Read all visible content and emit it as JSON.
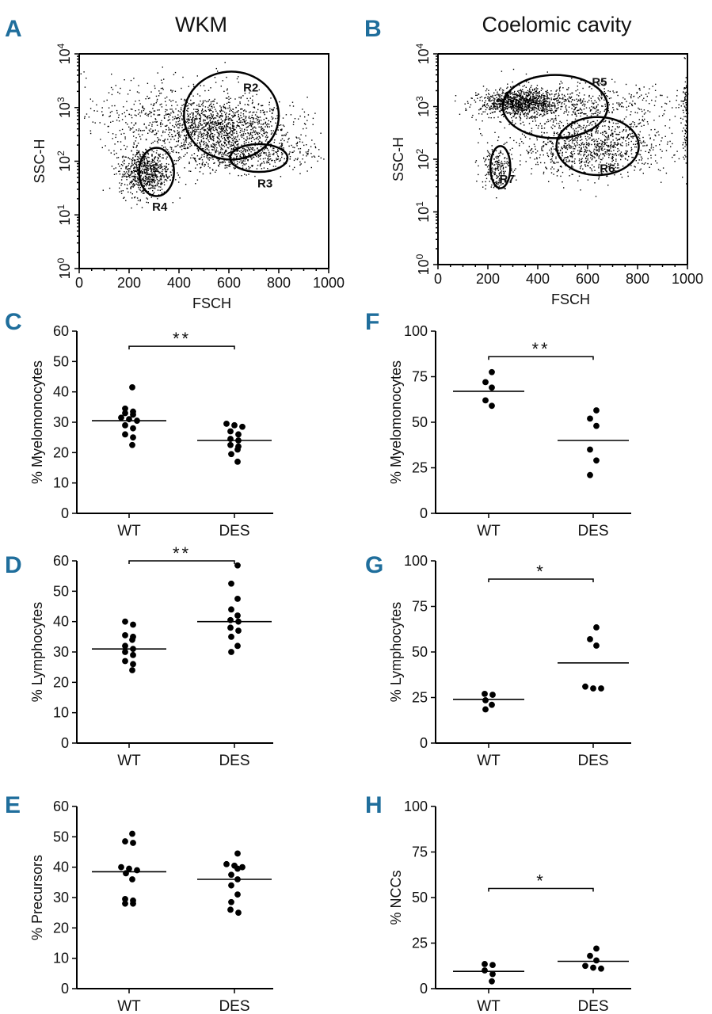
{
  "columns": [
    {
      "title": "WKM"
    },
    {
      "title": "Coelomic cavity"
    }
  ],
  "chart_data": [
    {
      "id": "A",
      "type": "scatter",
      "panel_letter": "A",
      "xlabel": "FSCH",
      "ylabel": "SSC-H",
      "xlim": [
        0,
        1000
      ],
      "ylim_log10": [
        0,
        4
      ],
      "yscale": "log",
      "x_ticks": [
        "0",
        "200",
        "400",
        "600",
        "800",
        "1000"
      ],
      "y_ticks": [
        "10",
        "10",
        "10",
        "10",
        "10"
      ],
      "y_tick_exponents": [
        "0",
        "1",
        "2",
        "3",
        "4"
      ],
      "gates": [
        {
          "name": "R2",
          "cx": 610,
          "cy_log": 2.85,
          "rx": 380,
          "ry_log": 0.82
        },
        {
          "name": "R3",
          "cx": 720,
          "cy_log": 2.06,
          "rx": 230,
          "ry_log": 0.26
        },
        {
          "name": "R4",
          "cx": 310,
          "cy_log": 1.8,
          "rx": 140,
          "ry_log": 0.45
        }
      ],
      "clusters": [
        {
          "cx": 550,
          "cy_log": 2.6,
          "sx": 150,
          "sy_log": 0.25,
          "n": 1100
        },
        {
          "cx": 650,
          "cy_log": 2.1,
          "sx": 140,
          "sy_log": 0.15,
          "n": 500
        },
        {
          "cx": 260,
          "cy_log": 1.8,
          "sx": 50,
          "sy_log": 0.22,
          "n": 700
        },
        {
          "cx": 420,
          "cy_log": 2.9,
          "sx": 200,
          "sy_log": 0.35,
          "n": 500
        }
      ]
    },
    {
      "id": "B",
      "type": "scatter",
      "panel_letter": "B",
      "xlabel": "FSCH",
      "ylabel": "SSC-H",
      "xlim": [
        0,
        1000
      ],
      "ylim_log10": [
        0,
        4
      ],
      "yscale": "log",
      "x_ticks": [
        "0",
        "200",
        "400",
        "600",
        "800",
        "1000"
      ],
      "y_ticks": [
        "10",
        "10",
        "10",
        "10",
        "10"
      ],
      "y_tick_exponents": [
        "0",
        "1",
        "2",
        "3",
        "4"
      ],
      "gates": [
        {
          "name": "R5",
          "cx": 470,
          "cy_log": 3.0,
          "rx": 420,
          "ry_log": 0.6
        },
        {
          "name": "R6",
          "cx": 640,
          "cy_log": 2.25,
          "rx": 330,
          "ry_log": 0.55
        },
        {
          "name": "R7",
          "cx": 250,
          "cy_log": 1.85,
          "rx": 80,
          "ry_log": 0.4
        }
      ],
      "clusters": [
        {
          "cx": 330,
          "cy_log": 3.08,
          "sx": 80,
          "sy_log": 0.12,
          "n": 1000
        },
        {
          "cx": 550,
          "cy_log": 3.05,
          "sx": 200,
          "sy_log": 0.22,
          "n": 500
        },
        {
          "cx": 620,
          "cy_log": 2.25,
          "sx": 150,
          "sy_log": 0.28,
          "n": 1000
        },
        {
          "cx": 230,
          "cy_log": 1.85,
          "sx": 30,
          "sy_log": 0.2,
          "n": 200
        },
        {
          "cx": 990,
          "cy_log": 2.8,
          "sx": 6,
          "sy_log": 0.5,
          "n": 100
        }
      ]
    },
    {
      "id": "C",
      "type": "scatter",
      "panel_letter": "C",
      "ylabel": "% Myelomonocytes",
      "ylim": [
        0,
        60
      ],
      "y_ticks": [
        0,
        10,
        20,
        30,
        40,
        50,
        60
      ],
      "categories": [
        "WT",
        "DES"
      ],
      "series": [
        {
          "values": [
            41.5,
            34.5,
            33.5,
            33,
            32.5,
            31.5,
            31,
            30.5,
            29,
            28,
            26,
            25,
            22.5
          ],
          "mean": 30.5
        },
        {
          "values": [
            29.5,
            29,
            28.5,
            27,
            26,
            24.5,
            24,
            22.5,
            22,
            21,
            19.5,
            17
          ],
          "mean": 24
        }
      ],
      "significance": "**"
    },
    {
      "id": "D",
      "type": "scatter",
      "panel_letter": "D",
      "ylabel": "% Lymphocytes",
      "ylim": [
        0,
        60
      ],
      "y_ticks": [
        0,
        10,
        20,
        30,
        40,
        50,
        60
      ],
      "categories": [
        "WT",
        "DES"
      ],
      "series": [
        {
          "values": [
            40,
            39,
            35.5,
            35,
            34,
            32,
            31,
            30,
            29,
            27,
            26,
            24
          ],
          "mean": 31
        },
        {
          "values": [
            58.5,
            52.5,
            47.5,
            44,
            42,
            40.5,
            40,
            38,
            37,
            35,
            32,
            30
          ],
          "mean": 40
        }
      ],
      "significance": "**"
    },
    {
      "id": "E",
      "type": "scatter",
      "panel_letter": "E",
      "ylabel": "% Precursors",
      "ylim": [
        0,
        60
      ],
      "y_ticks": [
        0,
        10,
        20,
        30,
        40,
        50,
        60
      ],
      "categories": [
        "WT",
        "DES"
      ],
      "series": [
        {
          "values": [
            51,
            48.5,
            48,
            40,
            39.5,
            39,
            38,
            36,
            29.5,
            29,
            28,
            28
          ],
          "mean": 38.5
        },
        {
          "values": [
            44.5,
            41,
            40.5,
            40,
            39.5,
            37.5,
            36,
            34,
            31,
            28.5,
            26,
            25
          ],
          "mean": 36
        }
      ],
      "significance": ""
    },
    {
      "id": "F",
      "type": "scatter",
      "panel_letter": "F",
      "ylabel": "% Myelomonocytes",
      "ylim": [
        0,
        100
      ],
      "y_ticks": [
        0,
        25,
        50,
        75,
        100
      ],
      "categories": [
        "WT",
        "DES"
      ],
      "series": [
        {
          "values": [
            77.5,
            72,
            69,
            62,
            59
          ],
          "mean": 67
        },
        {
          "values": [
            56.5,
            52,
            48,
            35,
            29,
            21
          ],
          "mean": 40
        }
      ],
      "significance": "**"
    },
    {
      "id": "G",
      "type": "scatter",
      "panel_letter": "G",
      "ylabel": "% Lymphocytes",
      "ylim": [
        0,
        100
      ],
      "y_ticks": [
        0,
        25,
        50,
        75,
        100
      ],
      "categories": [
        "WT",
        "DES"
      ],
      "series": [
        {
          "values": [
            27,
            26.5,
            23.5,
            21,
            18.5
          ],
          "mean": 24
        },
        {
          "values": [
            63.5,
            57,
            53.5,
            31,
            30,
            30
          ],
          "mean": 44
        }
      ],
      "significance": "*"
    },
    {
      "id": "H",
      "type": "scatter",
      "panel_letter": "H",
      "ylabel": "% NCCs",
      "ylim": [
        0,
        100
      ],
      "y_ticks": [
        0,
        25,
        50,
        75,
        100
      ],
      "categories": [
        "WT",
        "DES"
      ],
      "series": [
        {
          "values": [
            13.5,
            13,
            10,
            8,
            4
          ],
          "mean": 9.5
        },
        {
          "values": [
            22,
            18,
            15.5,
            12.5,
            11.5,
            11
          ],
          "mean": 15
        }
      ],
      "significance": "*"
    }
  ]
}
